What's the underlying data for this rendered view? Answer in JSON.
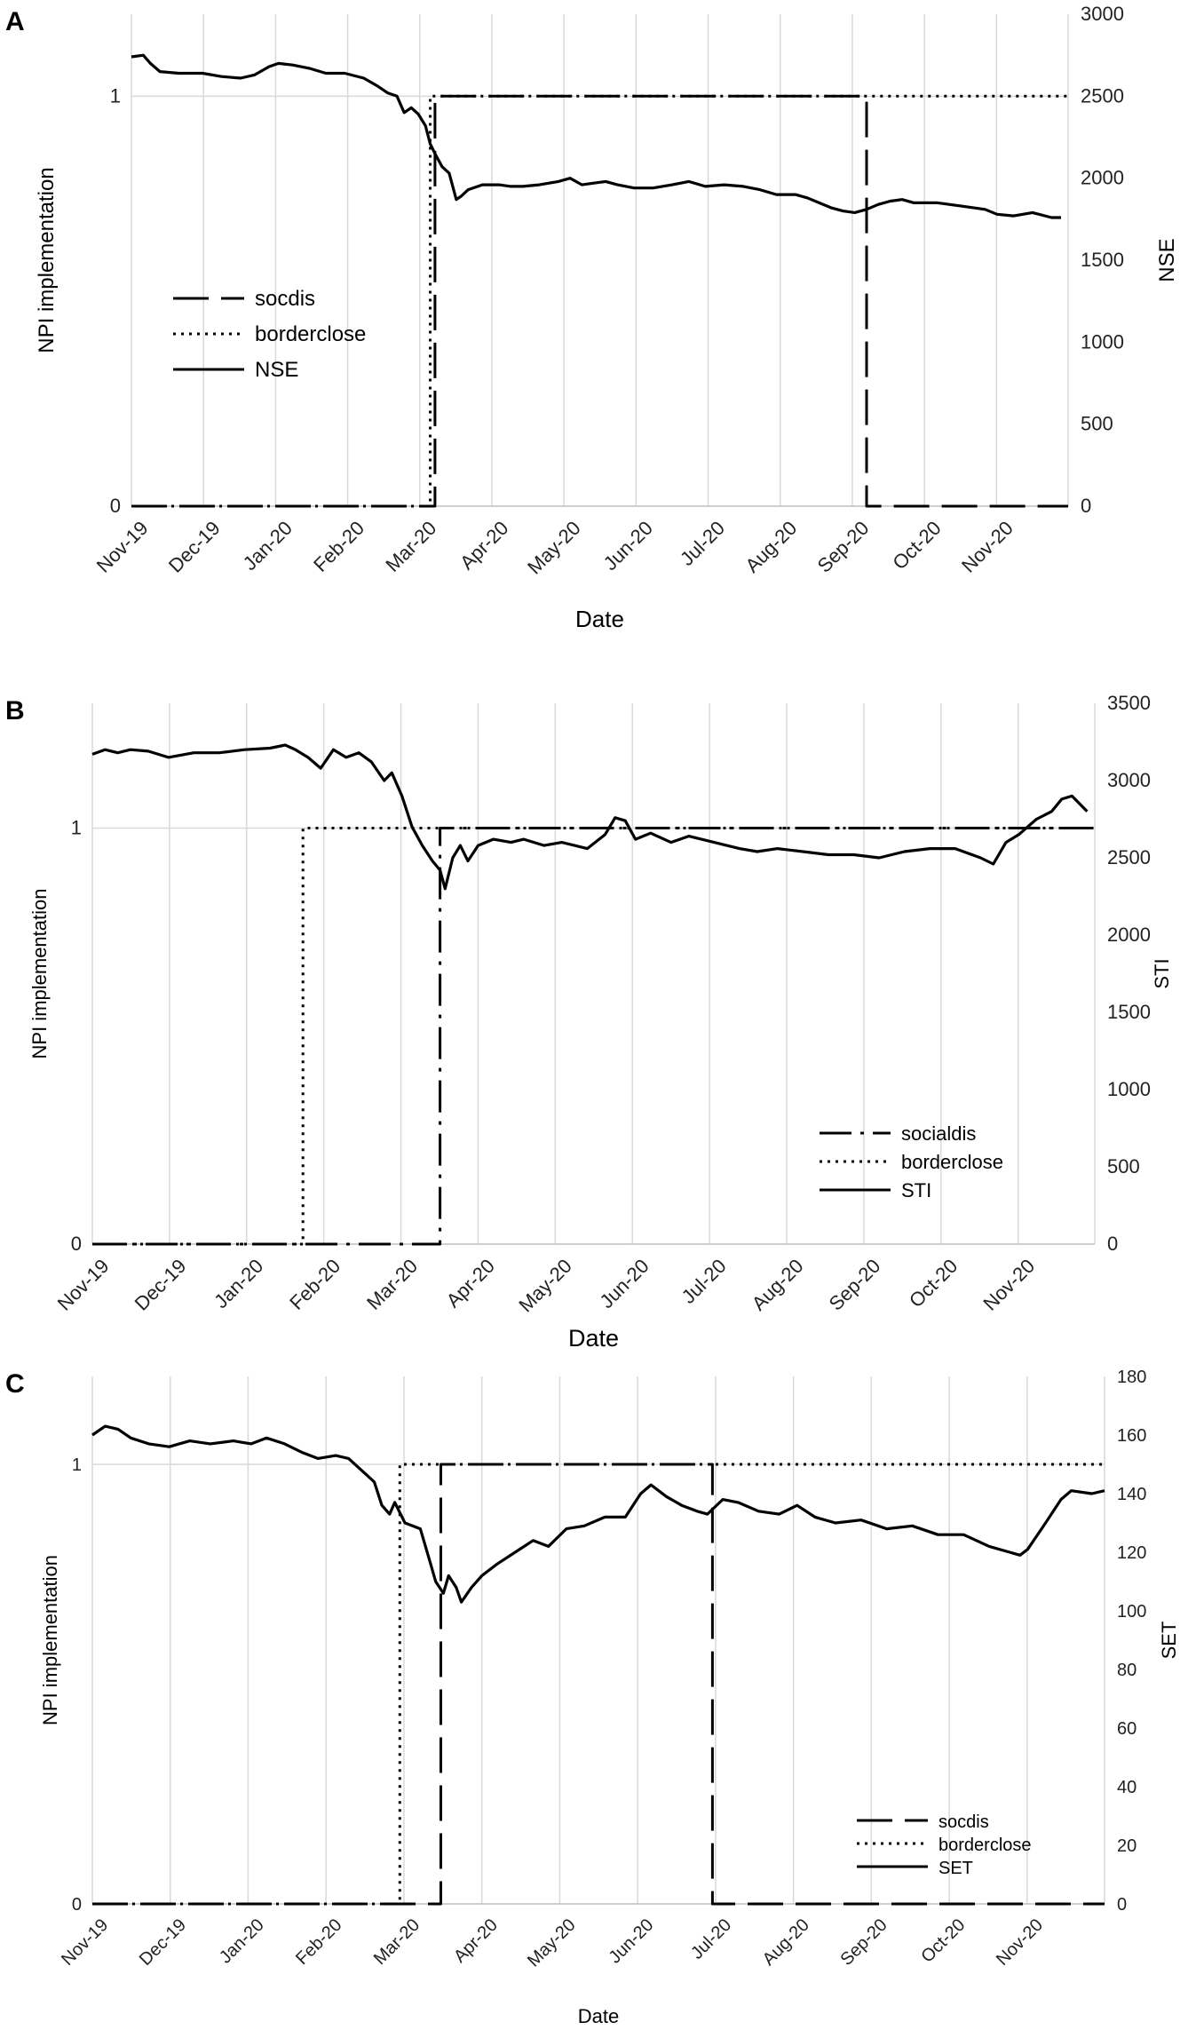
{
  "chart_data": [
    {
      "type": "line",
      "panel_label": "A",
      "xlabel": "Date",
      "ylabel_left": "NPI implementation",
      "ylabel_right": "NSE",
      "x_tick_labels": [
        "Nov-19",
        "Dec-19",
        "Jan-20",
        "Feb-20",
        "Mar-20",
        "Apr-20",
        "May-20",
        "Jun-20",
        "Jul-20",
        "Aug-20",
        "Sep-20",
        "Oct-20",
        "Nov-20"
      ],
      "y_left_ticks": [
        "0",
        "1"
      ],
      "y_left_range": [
        0,
        1.2
      ],
      "y_right_ticks": [
        "0",
        "500",
        "1000",
        "1500",
        "2000",
        "2500",
        "3000"
      ],
      "y_right_range": [
        0,
        3000
      ],
      "x_range_days": [
        0,
        395
      ],
      "grid": "vertical",
      "legend_position": "bottom-left",
      "series": [
        {
          "name": "socdis",
          "axis": "left",
          "style": "dash",
          "steps": [
            [
              0,
              0
            ],
            [
              128,
              0
            ],
            [
              128,
              1
            ],
            [
              310,
              1
            ],
            [
              310,
              0
            ],
            [
              395,
              0
            ]
          ]
        },
        {
          "name": "borderclose",
          "axis": "left",
          "style": "dot",
          "steps": [
            [
              0,
              0
            ],
            [
              126,
              0
            ],
            [
              126,
              1
            ],
            [
              395,
              1
            ]
          ]
        },
        {
          "name": "NSE",
          "axis": "right",
          "style": "solid",
          "points": [
            [
              0,
              2740
            ],
            [
              5,
              2750
            ],
            [
              8,
              2700
            ],
            [
              12,
              2650
            ],
            [
              20,
              2640
            ],
            [
              30,
              2640
            ],
            [
              38,
              2620
            ],
            [
              46,
              2610
            ],
            [
              52,
              2630
            ],
            [
              58,
              2680
            ],
            [
              62,
              2700
            ],
            [
              68,
              2690
            ],
            [
              75,
              2670
            ],
            [
              82,
              2640
            ],
            [
              90,
              2640
            ],
            [
              98,
              2610
            ],
            [
              104,
              2560
            ],
            [
              108,
              2520
            ],
            [
              112,
              2500
            ],
            [
              115,
              2400
            ],
            [
              118,
              2430
            ],
            [
              121,
              2390
            ],
            [
              124,
              2320
            ],
            [
              126,
              2210
            ],
            [
              128,
              2150
            ],
            [
              131,
              2070
            ],
            [
              134,
              2030
            ],
            [
              137,
              1870
            ],
            [
              139,
              1890
            ],
            [
              142,
              1930
            ],
            [
              148,
              1960
            ],
            [
              155,
              1960
            ],
            [
              160,
              1950
            ],
            [
              165,
              1950
            ],
            [
              172,
              1960
            ],
            [
              180,
              1980
            ],
            [
              185,
              2000
            ],
            [
              190,
              1960
            ],
            [
              195,
              1970
            ],
            [
              200,
              1980
            ],
            [
              205,
              1960
            ],
            [
              212,
              1940
            ],
            [
              220,
              1940
            ],
            [
              228,
              1960
            ],
            [
              235,
              1980
            ],
            [
              242,
              1950
            ],
            [
              250,
              1960
            ],
            [
              258,
              1950
            ],
            [
              265,
              1930
            ],
            [
              272,
              1900
            ],
            [
              280,
              1900
            ],
            [
              285,
              1880
            ],
            [
              290,
              1850
            ],
            [
              295,
              1820
            ],
            [
              300,
              1800
            ],
            [
              305,
              1790
            ],
            [
              310,
              1810
            ],
            [
              315,
              1840
            ],
            [
              320,
              1860
            ],
            [
              325,
              1870
            ],
            [
              330,
              1850
            ],
            [
              340,
              1850
            ],
            [
              350,
              1830
            ],
            [
              360,
              1810
            ],
            [
              365,
              1780
            ],
            [
              372,
              1770
            ],
            [
              380,
              1790
            ],
            [
              388,
              1760
            ],
            [
              392,
              1760
            ]
          ]
        }
      ]
    },
    {
      "type": "line",
      "panel_label": "B",
      "xlabel": "Date",
      "ylabel_left": "NPI implementation",
      "ylabel_right": "STI",
      "x_tick_labels": [
        "Nov-19",
        "Dec-19",
        "Jan-20",
        "Feb-20",
        "Mar-20",
        "Apr-20",
        "May-20",
        "Jun-20",
        "Jul-20",
        "Aug-20",
        "Sep-20",
        "Oct-20",
        "Nov-20"
      ],
      "y_left_ticks": [
        "0",
        "1"
      ],
      "y_left_range": [
        0,
        1.3
      ],
      "y_right_ticks": [
        "0",
        "500",
        "1000",
        "1500",
        "2000",
        "2500",
        "3000",
        "3500"
      ],
      "y_right_range": [
        0,
        3500
      ],
      "x_range_days": [
        0,
        395
      ],
      "grid": "vertical",
      "legend_position": "bottom-right",
      "series": [
        {
          "name": "socialdis",
          "axis": "left",
          "style": "dashdot",
          "steps": [
            [
              0,
              0
            ],
            [
              137,
              0
            ],
            [
              137,
              1
            ],
            [
              395,
              1
            ]
          ]
        },
        {
          "name": "borderclose",
          "axis": "left",
          "style": "dot",
          "steps": [
            [
              0,
              0
            ],
            [
              83,
              0
            ],
            [
              83,
              1
            ],
            [
              395,
              1
            ]
          ]
        },
        {
          "name": "STI",
          "axis": "right",
          "style": "solid",
          "points": [
            [
              0,
              3170
            ],
            [
              5,
              3200
            ],
            [
              10,
              3180
            ],
            [
              15,
              3200
            ],
            [
              22,
              3190
            ],
            [
              30,
              3150
            ],
            [
              40,
              3180
            ],
            [
              50,
              3180
            ],
            [
              60,
              3200
            ],
            [
              70,
              3210
            ],
            [
              76,
              3230
            ],
            [
              80,
              3200
            ],
            [
              85,
              3150
            ],
            [
              90,
              3080
            ],
            [
              95,
              3200
            ],
            [
              100,
              3150
            ],
            [
              105,
              3180
            ],
            [
              110,
              3120
            ],
            [
              115,
              3000
            ],
            [
              118,
              3050
            ],
            [
              122,
              2900
            ],
            [
              126,
              2700
            ],
            [
              130,
              2580
            ],
            [
              134,
              2480
            ],
            [
              137,
              2420
            ],
            [
              139,
              2300
            ],
            [
              142,
              2500
            ],
            [
              145,
              2580
            ],
            [
              148,
              2480
            ],
            [
              152,
              2580
            ],
            [
              158,
              2620
            ],
            [
              165,
              2600
            ],
            [
              170,
              2620
            ],
            [
              178,
              2580
            ],
            [
              185,
              2600
            ],
            [
              195,
              2560
            ],
            [
              202,
              2650
            ],
            [
              206,
              2760
            ],
            [
              210,
              2740
            ],
            [
              214,
              2620
            ],
            [
              220,
              2660
            ],
            [
              228,
              2600
            ],
            [
              235,
              2640
            ],
            [
              245,
              2600
            ],
            [
              255,
              2560
            ],
            [
              262,
              2540
            ],
            [
              270,
              2560
            ],
            [
              280,
              2540
            ],
            [
              290,
              2520
            ],
            [
              300,
              2520
            ],
            [
              310,
              2500
            ],
            [
              320,
              2540
            ],
            [
              330,
              2560
            ],
            [
              340,
              2560
            ],
            [
              350,
              2500
            ],
            [
              355,
              2460
            ],
            [
              360,
              2600
            ],
            [
              365,
              2650
            ],
            [
              372,
              2750
            ],
            [
              378,
              2800
            ],
            [
              382,
              2880
            ],
            [
              386,
              2900
            ],
            [
              392,
              2800
            ]
          ]
        }
      ]
    },
    {
      "type": "line",
      "panel_label": "C",
      "xlabel": "Date",
      "ylabel_left": "NPI implementation",
      "ylabel_right": "SET",
      "x_tick_labels": [
        "Nov-19",
        "Dec-19",
        "Jan-20",
        "Feb-20",
        "Mar-20",
        "Apr-20",
        "May-20",
        "Jun-20",
        "Jul-20",
        "Aug-20",
        "Sep-20",
        "Oct-20",
        "Nov-20"
      ],
      "y_left_ticks": [
        "0",
        "1"
      ],
      "y_left_range": [
        0,
        1.2
      ],
      "y_right_ticks": [
        "0",
        "20",
        "40",
        "60",
        "80",
        "100",
        "120",
        "140",
        "160",
        "180"
      ],
      "y_right_range": [
        0,
        180
      ],
      "x_range_days": [
        0,
        395
      ],
      "grid": "vertical",
      "legend_position": "bottom-right",
      "series": [
        {
          "name": "socdis",
          "axis": "left",
          "style": "dash",
          "steps": [
            [
              0,
              0
            ],
            [
              136,
              0
            ],
            [
              136,
              1
            ],
            [
              242,
              1
            ],
            [
              242,
              0
            ],
            [
              395,
              0
            ]
          ]
        },
        {
          "name": "borderclose",
          "axis": "left",
          "style": "dot",
          "steps": [
            [
              0,
              0
            ],
            [
              120,
              0
            ],
            [
              120,
              1
            ],
            [
              395,
              1
            ]
          ]
        },
        {
          "name": "SET",
          "axis": "right",
          "style": "solid",
          "points": [
            [
              0,
              160
            ],
            [
              5,
              163
            ],
            [
              10,
              162
            ],
            [
              15,
              159
            ],
            [
              22,
              157
            ],
            [
              30,
              156
            ],
            [
              38,
              158
            ],
            [
              46,
              157
            ],
            [
              55,
              158
            ],
            [
              62,
              157
            ],
            [
              68,
              159
            ],
            [
              75,
              157
            ],
            [
              82,
              154
            ],
            [
              88,
              152
            ],
            [
              95,
              153
            ],
            [
              100,
              152
            ],
            [
              105,
              148
            ],
            [
              110,
              144
            ],
            [
              113,
              136
            ],
            [
              116,
              133
            ],
            [
              118,
              137
            ],
            [
              122,
              130
            ],
            [
              128,
              128
            ],
            [
              132,
              116
            ],
            [
              134,
              110
            ],
            [
              137,
              106
            ],
            [
              139,
              112
            ],
            [
              142,
              108
            ],
            [
              144,
              103
            ],
            [
              148,
              108
            ],
            [
              152,
              112
            ],
            [
              158,
              116
            ],
            [
              165,
              120
            ],
            [
              172,
              124
            ],
            [
              178,
              122
            ],
            [
              185,
              128
            ],
            [
              192,
              129
            ],
            [
              200,
              132
            ],
            [
              208,
              132
            ],
            [
              214,
              140
            ],
            [
              218,
              143
            ],
            [
              224,
              139
            ],
            [
              230,
              136
            ],
            [
              236,
              134
            ],
            [
              240,
              133
            ],
            [
              246,
              138
            ],
            [
              252,
              137
            ],
            [
              260,
              134
            ],
            [
              268,
              133
            ],
            [
              275,
              136
            ],
            [
              282,
              132
            ],
            [
              290,
              130
            ],
            [
              300,
              131
            ],
            [
              310,
              128
            ],
            [
              320,
              129
            ],
            [
              330,
              126
            ],
            [
              340,
              126
            ],
            [
              350,
              122
            ],
            [
              358,
              120
            ],
            [
              362,
              119
            ],
            [
              365,
              121
            ],
            [
              372,
              130
            ],
            [
              378,
              138
            ],
            [
              382,
              141
            ],
            [
              390,
              140
            ],
            [
              395,
              141
            ]
          ]
        }
      ]
    }
  ]
}
